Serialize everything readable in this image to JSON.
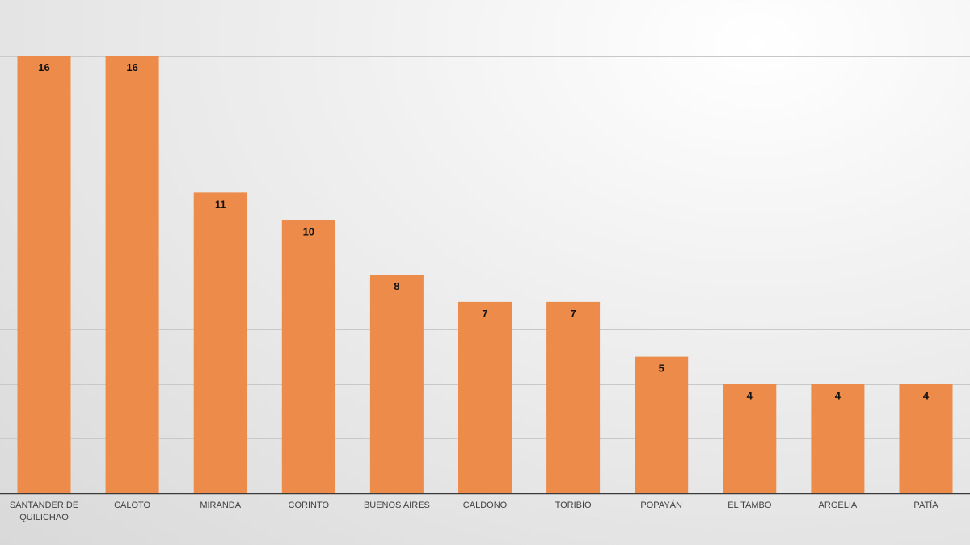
{
  "chart_data": {
    "type": "bar",
    "categories": [
      "SANTANDER DE QUILICHAO",
      "CALOTO",
      "MIRANDA",
      "CORINTO",
      "BUENOS AIRES",
      "CALDONO",
      "TORIBÍO",
      "POPAYÁN",
      "EL TAMBO",
      "ARGELIA",
      "PATÍA"
    ],
    "category_lines": [
      [
        "SANTANDER DE",
        "QUILICHAO"
      ],
      [
        "CALOTO"
      ],
      [
        "MIRANDA"
      ],
      [
        "CORINTO"
      ],
      [
        "BUENOS AIRES"
      ],
      [
        "CALDONO"
      ],
      [
        "TORIBÍO"
      ],
      [
        "POPAYÁN"
      ],
      [
        "EL TAMBO"
      ],
      [
        "ARGELIA"
      ],
      [
        "PATÍA"
      ]
    ],
    "values": [
      16,
      16,
      11,
      10,
      8,
      7,
      7,
      5,
      4,
      4,
      4
    ],
    "ylim": [
      0,
      16
    ],
    "grid_step": 2,
    "grid": true,
    "bar_color": "#ED8B4A",
    "grid_color": "#C8C8C8",
    "axis_color": "#3A3A3A"
  }
}
